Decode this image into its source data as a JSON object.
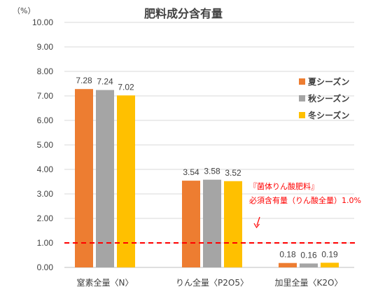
{
  "chart_data": {
    "type": "bar",
    "title": "肥料成分含有量",
    "unit": "（%）",
    "ylim": [
      0,
      10
    ],
    "yticks": [
      "0.00",
      "1.00",
      "2.00",
      "3.00",
      "4.00",
      "5.00",
      "6.00",
      "7.00",
      "8.00",
      "9.00",
      "10.00"
    ],
    "grid": true,
    "legend_position": "right",
    "categories": [
      "窒素全量〈N〉",
      "りん全量〈P2O5〉",
      "加里全量〈K2O〉"
    ],
    "series": [
      {
        "name": "夏シーズン",
        "color": "#ED7D31",
        "values": [
          7.28,
          3.54,
          0.18
        ],
        "labels": [
          "7.28",
          "3.54",
          "0.18"
        ]
      },
      {
        "name": "秋シーズン",
        "color": "#A5A5A5",
        "values": [
          7.24,
          3.58,
          0.16
        ],
        "labels": [
          "7.24",
          "3.58",
          "0.16"
        ]
      },
      {
        "name": "冬シーズン",
        "color": "#FFC000",
        "values": [
          7.02,
          3.52,
          0.19
        ],
        "labels": [
          "7.02",
          "3.52",
          "0.19"
        ]
      }
    ],
    "reference_line": {
      "value": 1.0,
      "color": "#FF0000",
      "style": "dashed"
    },
    "annotation": {
      "line1": "『菌体りん酸肥料』",
      "line2": "必須含有量（りん酸全量）1.0%",
      "color": "#FF0000"
    }
  }
}
